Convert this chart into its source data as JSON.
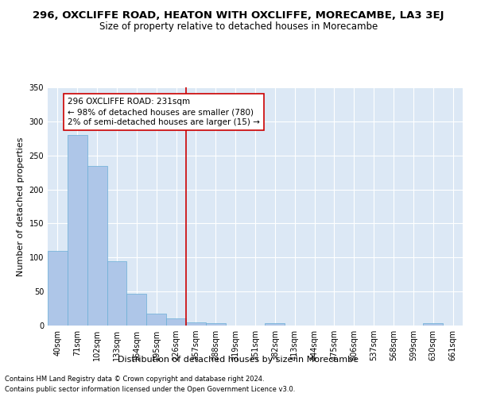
{
  "title": "296, OXCLIFFE ROAD, HEATON WITH OXCLIFFE, MORECAMBE, LA3 3EJ",
  "subtitle": "Size of property relative to detached houses in Morecambe",
  "xlabel": "Distribution of detached houses by size in Morecambe",
  "ylabel": "Number of detached properties",
  "footer_line1": "Contains HM Land Registry data © Crown copyright and database right 2024.",
  "footer_line2": "Contains public sector information licensed under the Open Government Licence v3.0.",
  "annotation_line1": "296 OXCLIFFE ROAD: 231sqm",
  "annotation_line2": "← 98% of detached houses are smaller (780)",
  "annotation_line3": "2% of semi-detached houses are larger (15) →",
  "bin_labels": [
    "40sqm",
    "71sqm",
    "102sqm",
    "133sqm",
    "164sqm",
    "195sqm",
    "226sqm",
    "257sqm",
    "288sqm",
    "319sqm",
    "351sqm",
    "382sqm",
    "413sqm",
    "444sqm",
    "475sqm",
    "506sqm",
    "537sqm",
    "568sqm",
    "599sqm",
    "630sqm",
    "661sqm"
  ],
  "bar_values": [
    110,
    280,
    235,
    94,
    47,
    18,
    11,
    5,
    4,
    0,
    0,
    4,
    0,
    0,
    0,
    0,
    0,
    0,
    0,
    3,
    0
  ],
  "bar_color": "#aec6e8",
  "bar_edge_color": "#6aaed6",
  "vline_x": 6,
  "vline_color": "#cc0000",
  "annotation_box_color": "#cc0000",
  "background_color": "#dce8f5",
  "ylim": [
    0,
    350
  ],
  "yticks": [
    0,
    50,
    100,
    150,
    200,
    250,
    300,
    350
  ],
  "title_fontsize": 9.5,
  "subtitle_fontsize": 8.5,
  "axis_label_fontsize": 8,
  "tick_fontsize": 7,
  "footer_fontsize": 6,
  "annotation_fontsize": 7.5
}
